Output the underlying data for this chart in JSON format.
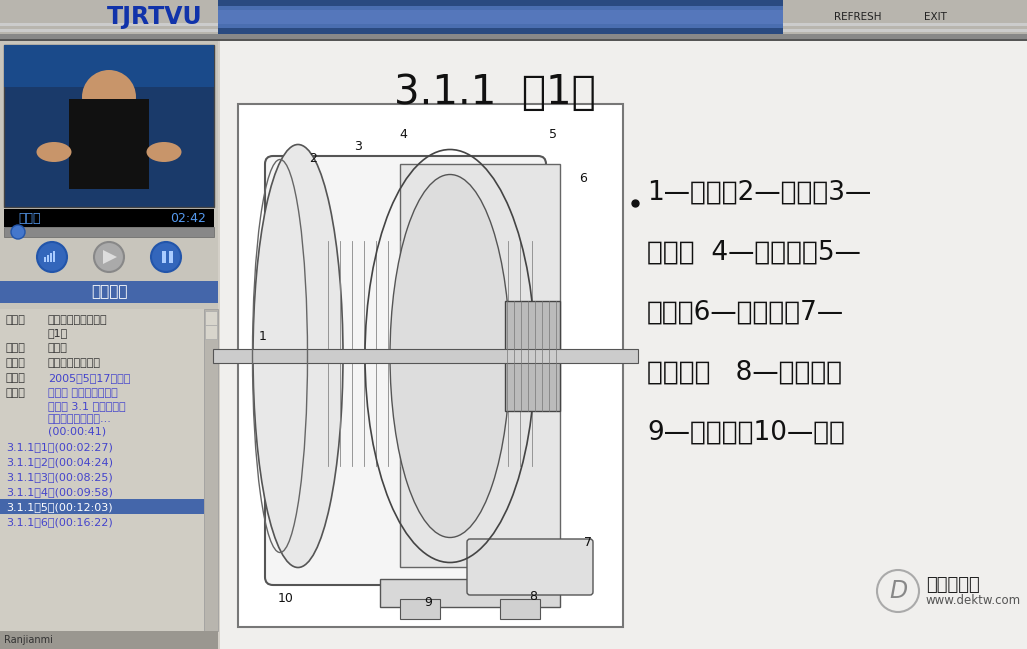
{
  "bg_color": "#d4d0c8",
  "left_panel_bg": "#c8c5bc",
  "right_panel_bg": "#f0f0f0",
  "top_bar_height": 34,
  "logo_text": "TJRTVU",
  "logo_color": "#1133aa",
  "refresh_text": "REFRESH",
  "exit_text": "EXIT",
  "title_text": "3.1.1  （1）",
  "title_color": "#111111",
  "label_lines": [
    "1—风扇；2—机座；3—",
    "电枢；  4—主磁极；5—",
    "刷架；6—换向器；7—",
    "接线板；   8—出线盒；",
    "9—换向极；10—端盖"
  ],
  "label_color": "#111111",
  "sidebar_title": "索引目录",
  "sidebar_items": [
    {
      "label": "主题：",
      "value": "电气传动与调速系统\n（1）",
      "value_color": "#333333"
    },
    {
      "label": "主讲：",
      "value": "刘文芳",
      "value_color": "#333333"
    },
    {
      "label": "版权：",
      "value": "天津电大版权所有",
      "value_color": "#333333"
    },
    {
      "label": "描述：",
      "value": "2005年5月17日录制",
      "value_color": "#4444cc"
    },
    {
      "label": "索引：",
      "value": "第三章 直流电机的原理\n及特性 3.1 直流电机的\n基本结构和工作原...\n(00:00:41)",
      "value_color": "#4444cc"
    }
  ],
  "sidebar_links": [
    "3.1.1（1）(00:02:27)",
    "3.1.1（2）(00:04:24)",
    "3.1.1（3）(00:08:25)",
    "3.1.1（4）(00:09:58)",
    "3.1.1（5）(00:12:03)",
    "3.1.1（6）(00:16:22)"
  ],
  "link_highlight_index": 4,
  "link_color": "#4444cc",
  "link_highlight_bg": "#4466aa",
  "link_highlight_color": "#ffffff",
  "watermark_text1": "第二课堂网",
  "watermark_text2": "www.dektw.com",
  "instructor_name": "刘文芳",
  "time_display": "02:42",
  "bottom_bar_text": "Ranjianmi"
}
